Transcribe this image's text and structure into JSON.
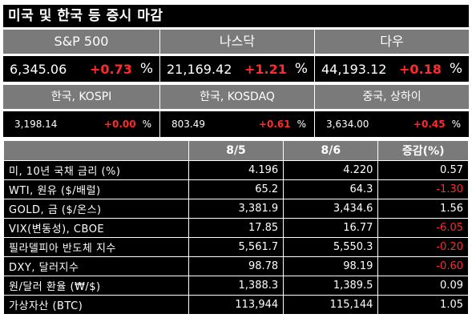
{
  "title": "미국 및 한국 등 증시 마감",
  "indices_top": [
    {
      "name": "S&P 500",
      "value": "6,345.06",
      "change": "+0.73",
      "unit": "%"
    },
    {
      "name": "나스닥",
      "value": "21,169.42",
      "change": "+1.21",
      "unit": "%"
    },
    {
      "name": "다우",
      "value": "44,193.12",
      "change": "+0.18",
      "unit": "%"
    }
  ],
  "indices_bottom": [
    {
      "name": "한국, KOSPI",
      "value": "3,198.14",
      "change": "+0.00",
      "unit": "%"
    },
    {
      "name": "한국, KOSDAQ",
      "value": "803.49",
      "change": "+0.61",
      "unit": "%"
    },
    {
      "name": "중국, 상하이",
      "value": "3,634.00",
      "change": "+0.45",
      "unit": "%"
    }
  ],
  "table": {
    "headers": [
      "",
      "8/5",
      "8/6",
      "증감(%)"
    ],
    "rows": [
      {
        "label": "미, 10년 국채 금리 (%)",
        "d1": "4.196",
        "d2": "4.220",
        "chg": "0.57",
        "negative": false
      },
      {
        "label": "WTI, 원유 ($/배럴)",
        "d1": "65.2",
        "d2": "64.3",
        "chg": "-1.30",
        "negative": true
      },
      {
        "label": "GOLD, 금 ($/온스)",
        "d1": "3,381.9",
        "d2": "3,434.6",
        "chg": "1.56",
        "negative": false
      },
      {
        "label": "VIX(변동성), CBOE",
        "d1": "17.85",
        "d2": "16.77",
        "chg": "-6.05",
        "negative": true
      },
      {
        "label": "필라델피아 반도체 지수",
        "d1": "5,561.7",
        "d2": "5,550.3",
        "chg": "-0.20",
        "negative": true
      },
      {
        "label": "DXY, 달러지수",
        "d1": "98.78",
        "d2": "98.19",
        "chg": "-0.60",
        "negative": true
      },
      {
        "label": "원/달러 환율 (₩/$)",
        "d1": "1,388.3",
        "d2": "1,389.5",
        "chg": "0.09",
        "negative": false
      },
      {
        "label": "가상자산 (BTC)",
        "d1": "113,944",
        "d2": "115,144",
        "chg": "1.05",
        "negative": false
      }
    ]
  },
  "colors": {
    "background": "#000000",
    "header_gray": "#7a7a7a",
    "negative": "#ff2b2b",
    "positive_change": "#ff2b2b"
  }
}
